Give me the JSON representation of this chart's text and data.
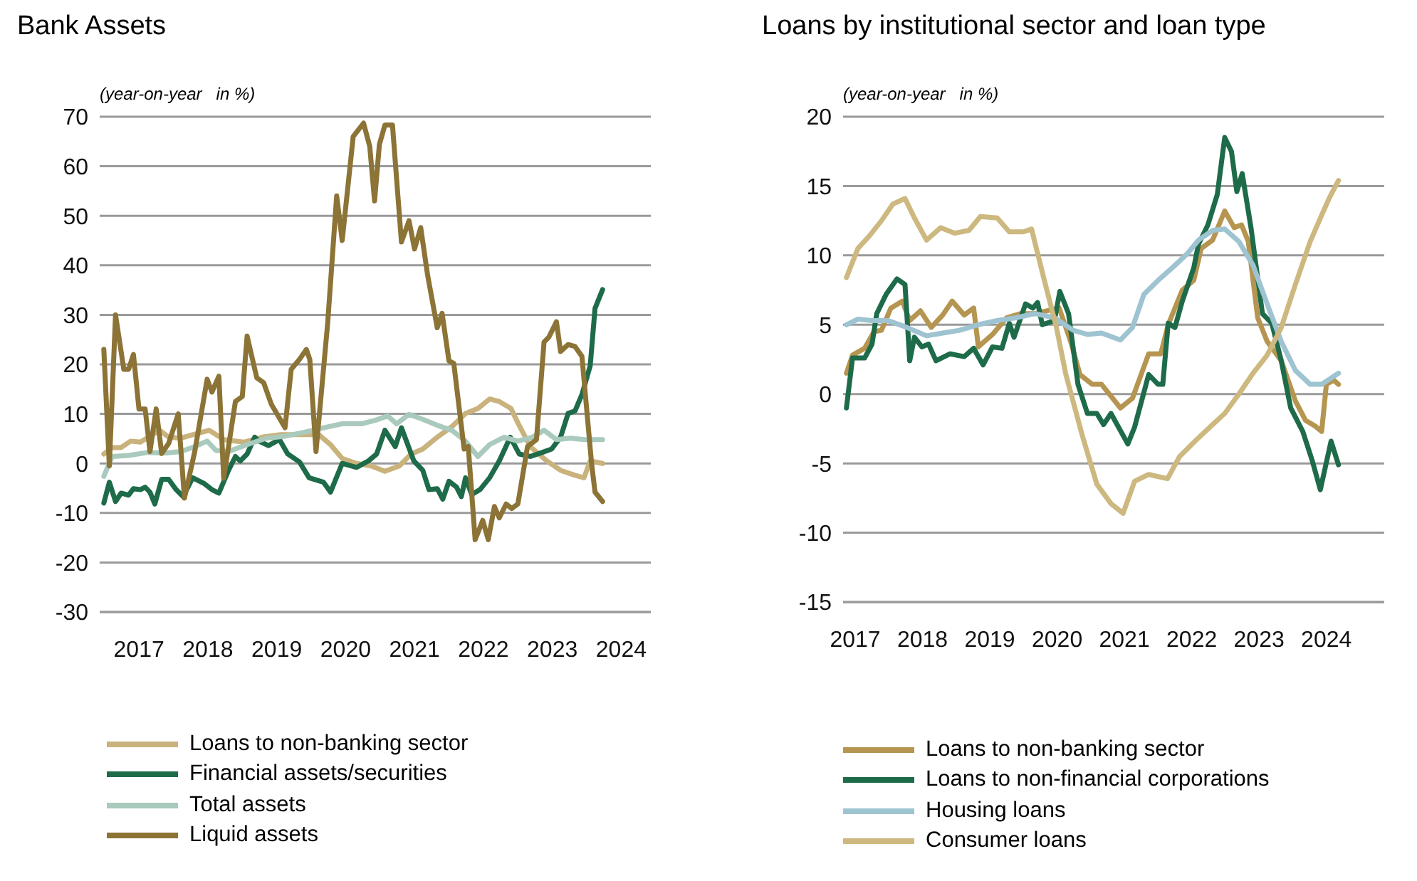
{
  "chart_data": [
    {
      "type": "line",
      "title": "Bank Assets",
      "ylabel": "(year-on-year   in %)",
      "xlim": [
        2016.43,
        2024.43
      ],
      "xticks": [
        2017,
        2018,
        2019,
        2020,
        2021,
        2022,
        2023,
        2024
      ],
      "ylim": [
        -30,
        70
      ],
      "yticks": [
        -30,
        -20,
        -10,
        0,
        10,
        20,
        30,
        40,
        50,
        60,
        70
      ],
      "grid": "y",
      "legend": "bottom",
      "marker": "none",
      "line_style": "solid",
      "series": [
        {
          "name": "Loans to non-banking sector",
          "color": "#c9b27c",
          "x": [
            2016.49,
            2016.61,
            2016.74,
            2016.88,
            2017.02,
            2017.16,
            2017.3,
            2017.43,
            2017.61,
            2017.78,
            2018.02,
            2018.23,
            2018.52,
            2018.79,
            2019.06,
            2019.33,
            2019.61,
            2019.78,
            2019.95,
            2020.16,
            2020.37,
            2020.57,
            2020.78,
            2020.95,
            2021.12,
            2021.33,
            2021.54,
            2021.74,
            2021.92,
            2022.09,
            2022.23,
            2022.4,
            2022.5,
            2022.68,
            2022.92,
            2023.12,
            2023.33,
            2023.46,
            2023.55,
            2023.73
          ],
          "values": [
            1.9,
            3.2,
            3.2,
            4.5,
            4.3,
            5.5,
            6.7,
            5.3,
            5.1,
            5.8,
            6.7,
            4.8,
            4.3,
            5.3,
            5.8,
            5.8,
            5.8,
            3.8,
            1,
            0,
            -0.5,
            -1.6,
            -0.5,
            1.9,
            2.9,
            5.3,
            7.4,
            10.1,
            11.1,
            13,
            12.5,
            11.1,
            8.2,
            3.4,
            0.5,
            -1.4,
            -2.4,
            -2.9,
            0.5,
            0
          ]
        },
        {
          "name": "Financial assets/securities",
          "color": "#1e6b4a",
          "x": [
            2016.49,
            2016.57,
            2016.66,
            2016.74,
            2016.85,
            2016.92,
            2017.02,
            2017.09,
            2017.16,
            2017.23,
            2017.33,
            2017.43,
            2017.54,
            2017.64,
            2017.78,
            2017.95,
            2018.06,
            2018.16,
            2018.3,
            2018.4,
            2018.47,
            2018.57,
            2018.68,
            2018.74,
            2018.88,
            2019.04,
            2019.16,
            2019.33,
            2019.47,
            2019.68,
            2019.78,
            2019.95,
            2020.16,
            2020.33,
            2020.45,
            2020.57,
            2020.72,
            2020.81,
            2020.99,
            2021.12,
            2021.21,
            2021.33,
            2021.41,
            2021.5,
            2021.61,
            2021.68,
            2021.74,
            2021.83,
            2021.95,
            2022.09,
            2022.23,
            2022.39,
            2022.52,
            2022.68,
            2022.85,
            2022.99,
            2023.12,
            2023.23,
            2023.33,
            2023.43,
            2023.55,
            2023.62,
            2023.73
          ],
          "values": [
            -8,
            -3.8,
            -7.7,
            -6,
            -6.4,
            -5.1,
            -5.3,
            -4.8,
            -5.8,
            -8.2,
            -3.2,
            -3.2,
            -5.3,
            -6.7,
            -2.9,
            -4.1,
            -5.3,
            -6,
            -1.4,
            1.4,
            0.5,
            1.9,
            5.3,
            4.5,
            3.6,
            4.8,
            1.9,
            0.3,
            -2.9,
            -3.8,
            -5.8,
            0,
            -0.8,
            0.5,
            1.9,
            6.7,
            3.4,
            7.2,
            0.5,
            -1.4,
            -5.3,
            -5.1,
            -7.2,
            -3.6,
            -4.8,
            -6.7,
            -2.9,
            -6.3,
            -5.3,
            -2.9,
            0.5,
            5.3,
            1.9,
            1.4,
            2.2,
            2.9,
            5.3,
            10.1,
            10.6,
            13.9,
            19.7,
            31.3,
            35.1
          ]
        },
        {
          "name": "Total assets",
          "color": "#a9cabd",
          "x": [
            2016.49,
            2016.61,
            2016.85,
            2017.12,
            2017.4,
            2017.61,
            2017.81,
            2017.99,
            2018.12,
            2018.3,
            2018.57,
            2018.85,
            2019.12,
            2019.4,
            2019.68,
            2019.95,
            2020.23,
            2020.43,
            2020.61,
            2020.74,
            2020.92,
            2021.12,
            2021.33,
            2021.54,
            2021.74,
            2021.92,
            2022.09,
            2022.3,
            2022.5,
            2022.71,
            2022.88,
            2023.06,
            2023.26,
            2023.47,
            2023.73
          ],
          "values": [
            -2.6,
            1.4,
            1.6,
            2.2,
            2.1,
            2.4,
            3.4,
            4.5,
            2.6,
            2.4,
            3.8,
            5.1,
            5.5,
            6.3,
            7.2,
            8,
            8,
            8.7,
            9.6,
            8,
            9.9,
            8.9,
            7.7,
            6.7,
            4.5,
            1.4,
            3.8,
            5.3,
            4.5,
            5.3,
            6.7,
            4.8,
            5.1,
            4.8,
            4.8
          ]
        },
        {
          "name": "Liquid assets",
          "color": "#8c7336",
          "x": [
            2016.49,
            2016.57,
            2016.66,
            2016.78,
            2016.85,
            2016.92,
            2017.0,
            2017.09,
            2017.16,
            2017.25,
            2017.33,
            2017.43,
            2017.57,
            2017.66,
            2017.81,
            2017.99,
            2018.06,
            2018.16,
            2018.23,
            2018.4,
            2018.5,
            2018.57,
            2018.71,
            2018.81,
            2018.92,
            2019.12,
            2019.21,
            2019.33,
            2019.43,
            2019.48,
            2019.57,
            2019.74,
            2019.87,
            2019.95,
            2020.11,
            2020.26,
            2020.35,
            2020.42,
            2020.49,
            2020.57,
            2020.68,
            2020.81,
            2020.92,
            2021.0,
            2021.09,
            2021.19,
            2021.33,
            2021.4,
            2021.5,
            2021.57,
            2021.72,
            2021.78,
            2021.88,
            2021.99,
            2022.07,
            2022.16,
            2022.23,
            2022.33,
            2022.41,
            2022.5,
            2022.64,
            2022.77,
            2022.88,
            2022.95,
            2023.06,
            2023.12,
            2023.23,
            2023.33,
            2023.43,
            2023.57,
            2023.62,
            2023.73
          ],
          "values": [
            23,
            -0.5,
            30,
            19,
            19,
            22,
            11,
            11,
            2.4,
            11,
            2,
            4,
            10,
            -7,
            2.4,
            17,
            14.4,
            17.6,
            -3,
            12.5,
            13.5,
            25.7,
            17.3,
            16.3,
            12,
            7.2,
            19,
            21,
            23,
            21,
            2.4,
            28.4,
            54,
            45,
            66,
            68.7,
            64,
            53,
            64.4,
            68.3,
            68.3,
            44.7,
            49,
            43.3,
            47.6,
            38,
            27.4,
            30.3,
            20.7,
            20.2,
            2.9,
            3.4,
            -15.4,
            -11.5,
            -15.4,
            -8.7,
            -11,
            -8.2,
            -9.1,
            -8.2,
            3.4,
            4.8,
            24.5,
            25.5,
            28.6,
            22.6,
            24,
            23.6,
            21.6,
            0,
            -5.8,
            -7.7
          ]
        }
      ]
    },
    {
      "type": "line",
      "title": "Loans by institutional sector and loan type",
      "ylabel": "(year-on-year   in %)",
      "xlim": [
        2016.82,
        2024.86
      ],
      "xticks": [
        2017,
        2018,
        2019,
        2020,
        2021,
        2022,
        2023,
        2024
      ],
      "ylim": [
        -15,
        20
      ],
      "yticks": [
        -15,
        -10,
        -5,
        0,
        5,
        10,
        15,
        20
      ],
      "grid": "y",
      "legend": "bottom",
      "marker": "none",
      "line_style": "solid",
      "series": [
        {
          "name": "Loans to non-banking sector",
          "color": "#b59550",
          "x": [
            2016.87,
            2016.96,
            2017.14,
            2017.28,
            2017.39,
            2017.53,
            2017.7,
            2017.81,
            2017.97,
            2018.13,
            2018.3,
            2018.44,
            2018.62,
            2018.76,
            2018.83,
            2019.04,
            2019.25,
            2019.46,
            2019.67,
            2020.03,
            2020.2,
            2020.34,
            2020.52,
            2020.66,
            2020.94,
            2021.12,
            2021.36,
            2021.54,
            2021.65,
            2021.86,
            2022.03,
            2022.14,
            2022.31,
            2022.49,
            2022.63,
            2022.74,
            2022.84,
            2022.98,
            2023.12,
            2023.33,
            2023.54,
            2023.69,
            2023.83,
            2023.93,
            2024.0,
            2024.11,
            2024.18
          ],
          "values": [
            1.5,
            2.8,
            3.3,
            4.5,
            4.6,
            6.2,
            6.7,
            5.3,
            6,
            4.8,
            5.7,
            6.7,
            5.7,
            6.2,
            3.4,
            4.3,
            5.5,
            5.8,
            5.8,
            6.2,
            3.8,
            1.4,
            0.7,
            0.7,
            -1,
            -0.3,
            2.9,
            2.9,
            5,
            7.5,
            8.2,
            10.5,
            11.1,
            13.2,
            12,
            12.2,
            11,
            5.5,
            3.8,
            2.4,
            -0.5,
            -1.9,
            -2.3,
            -2.7,
            0.7,
            1,
            0.7
          ]
        },
        {
          "name": "Loans to non-financial corporations",
          "color": "#1e6b4a",
          "x": [
            2016.87,
            2016.96,
            2017.14,
            2017.25,
            2017.32,
            2017.46,
            2017.62,
            2017.74,
            2017.81,
            2017.88,
            2017.99,
            2018.09,
            2018.2,
            2018.41,
            2018.62,
            2018.76,
            2018.9,
            2019.04,
            2019.18,
            2019.29,
            2019.36,
            2019.53,
            2019.64,
            2019.71,
            2019.78,
            2019.96,
            2020.04,
            2020.17,
            2020.31,
            2020.45,
            2020.59,
            2020.69,
            2020.8,
            2021.05,
            2021.15,
            2021.36,
            2021.5,
            2021.57,
            2021.65,
            2021.75,
            2021.86,
            2022.03,
            2022.1,
            2022.24,
            2022.38,
            2022.49,
            2022.59,
            2022.67,
            2022.75,
            2022.88,
            2023.05,
            2023.19,
            2023.33,
            2023.47,
            2023.65,
            2023.79,
            2023.91,
            2024.07,
            2024.18
          ],
          "values": [
            -1,
            2.6,
            2.6,
            3.6,
            5.8,
            7.2,
            8.3,
            7.9,
            2.4,
            4.1,
            3.4,
            3.6,
            2.4,
            2.9,
            2.7,
            3.3,
            2.1,
            3.4,
            3.3,
            5.1,
            4.1,
            6.5,
            6.2,
            6.6,
            5,
            5.3,
            7.4,
            5.8,
            0.7,
            -1.4,
            -1.4,
            -2.2,
            -1.4,
            -3.6,
            -2.4,
            1.4,
            0.7,
            0.7,
            5.1,
            4.8,
            6.7,
            9.1,
            10.8,
            12.2,
            14.4,
            18.5,
            17.5,
            14.6,
            15.9,
            12,
            5.8,
            5.1,
            2.4,
            -1,
            -2.7,
            -4.8,
            -6.9,
            -3.4,
            -5.1
          ]
        },
        {
          "name": "Housing loans",
          "color": "#9ec3d1",
          "x": [
            2016.87,
            2017.04,
            2017.25,
            2017.49,
            2017.77,
            2018.06,
            2018.3,
            2018.55,
            2018.83,
            2019.11,
            2019.39,
            2019.67,
            2019.96,
            2020.24,
            2020.45,
            2020.66,
            2020.94,
            2021.12,
            2021.29,
            2021.5,
            2021.71,
            2021.93,
            2022.1,
            2022.31,
            2022.49,
            2022.7,
            2022.91,
            2023.12,
            2023.33,
            2023.54,
            2023.76,
            2023.93,
            2024.18
          ],
          "values": [
            5,
            5.4,
            5.3,
            5.3,
            4.8,
            4.2,
            4.4,
            4.6,
            5,
            5.3,
            5.5,
            5.8,
            5.5,
            4.6,
            4.3,
            4.4,
            3.9,
            4.8,
            7.2,
            8.2,
            9.1,
            10.1,
            11.1,
            11.8,
            11.9,
            11,
            9.3,
            6.5,
            3.8,
            1.7,
            0.7,
            0.7,
            1.5
          ]
        },
        {
          "name": "Consumer loans",
          "color": "#cdb880",
          "x": [
            2016.87,
            2017.04,
            2017.21,
            2017.39,
            2017.56,
            2017.74,
            2017.88,
            2018.06,
            2018.27,
            2018.48,
            2018.69,
            2018.86,
            2019.11,
            2019.29,
            2019.5,
            2019.62,
            2019.81,
            2019.99,
            2020.13,
            2020.38,
            2020.59,
            2020.8,
            2020.98,
            2021.15,
            2021.36,
            2021.64,
            2021.82,
            2022.07,
            2022.31,
            2022.49,
            2022.7,
            2022.91,
            2023.12,
            2023.33,
            2023.54,
            2023.76,
            2023.93,
            2024.04,
            2024.18
          ],
          "values": [
            8.4,
            10.5,
            11.4,
            12.5,
            13.7,
            14.1,
            12.7,
            11.1,
            12,
            11.6,
            11.8,
            12.8,
            12.7,
            11.7,
            11.7,
            11.9,
            8.2,
            4.8,
            1.4,
            -3.1,
            -6.5,
            -7.9,
            -8.6,
            -6.3,
            -5.8,
            -6.1,
            -4.5,
            -3.3,
            -2.2,
            -1.4,
            0,
            1.5,
            2.8,
            4.8,
            7.9,
            11,
            12.9,
            14.1,
            15.4
          ]
        }
      ]
    }
  ]
}
